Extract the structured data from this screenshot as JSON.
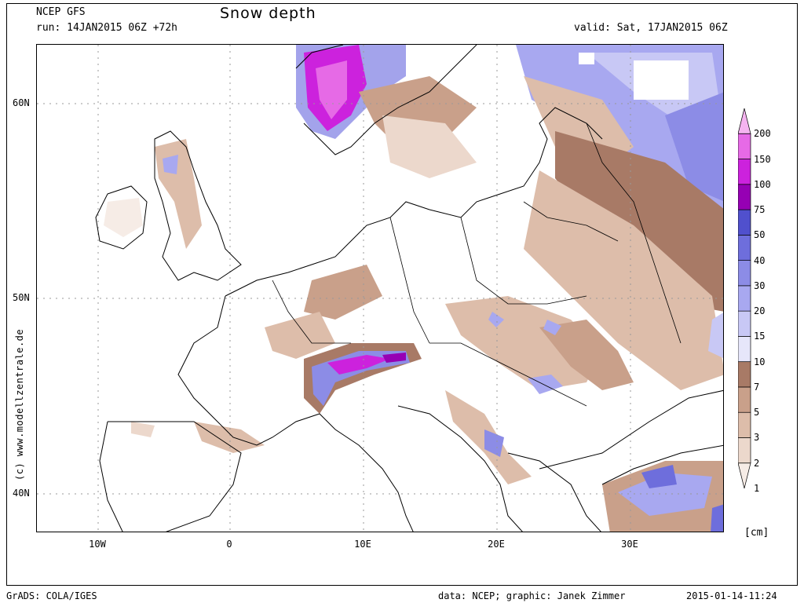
{
  "header": {
    "model": "NCEP GFS",
    "run": "run: 14JAN2015 06Z +72h",
    "title": "Snow depth",
    "valid": "valid: Sat, 17JAN2015 06Z"
  },
  "axes": {
    "lon_ticks": [
      "10W",
      "0",
      "10E",
      "20E",
      "30E"
    ],
    "lat_ticks": [
      "60N",
      "50N",
      "40N"
    ]
  },
  "credit": "(c) www.modellzentrale.de",
  "legend": {
    "unit": "[cm]",
    "levels": [
      "1",
      "2",
      "3",
      "5",
      "7",
      "10",
      "15",
      "20",
      "30",
      "40",
      "50",
      "75",
      "100",
      "150",
      "200"
    ],
    "colors": [
      "#f6ece6",
      "#ecd8cc",
      "#ddbdaa",
      "#c9a08a",
      "#a87a66",
      "#e6e6fa",
      "#c8c8f5",
      "#a8a8f0",
      "#8c8ce6",
      "#6e6edc",
      "#5050cd",
      "#9600b4",
      "#cc22dd",
      "#e66ae6",
      "#f5b4f0"
    ]
  },
  "footer": {
    "left": "GrADS: COLA/IGES",
    "center": "data: NCEP; graphic: Janek Zimmer",
    "right": "2015-01-14-11:24"
  }
}
